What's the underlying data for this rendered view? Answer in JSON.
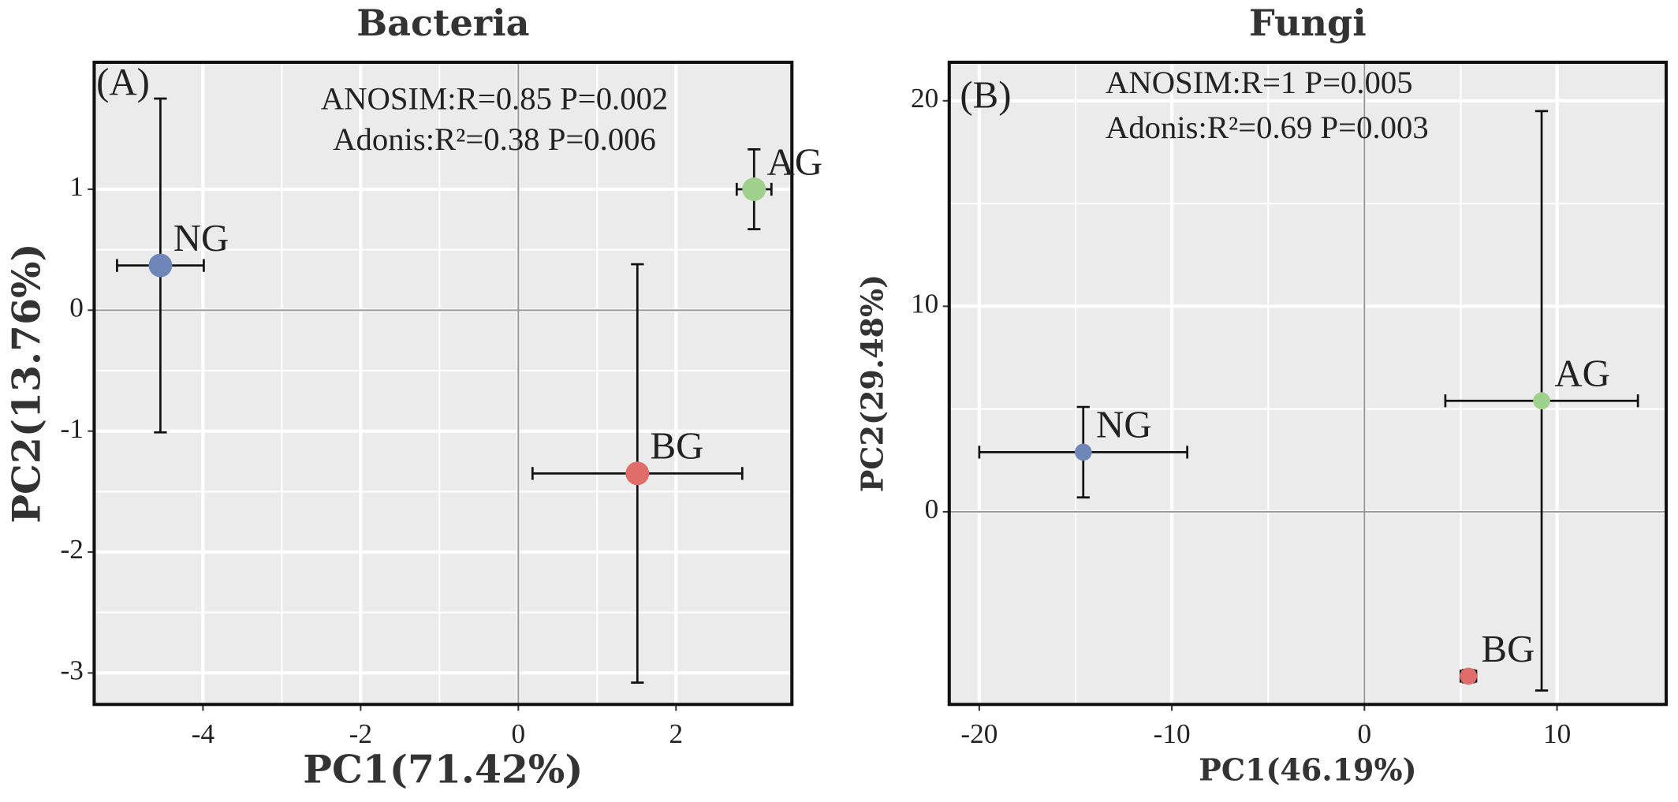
{
  "chart_data": [
    {
      "type": "scatter",
      "title": "Bacteria",
      "xlabel": "PC1(71.42%)",
      "ylabel": "PC2(13.76%)",
      "panel_label": "(A)",
      "annotations": [
        "ANOSIM:R=0.85  P=0.002",
        "Adonis:R²=0.38  P=0.006"
      ],
      "xlim": [
        -5.38,
        3.47
      ],
      "ylim": [
        -3.26,
        2.05
      ],
      "xticks": [
        -4,
        -2,
        0,
        2
      ],
      "yticks": [
        -3,
        -2,
        -1,
        0,
        1
      ],
      "grid": true,
      "series": [
        {
          "name": "NG",
          "color": "#6f86b8",
          "x": [
            -4.54
          ],
          "values": [
            0.37
          ],
          "xerr": [
            0.55
          ],
          "yerr": [
            1.38
          ]
        },
        {
          "name": "AG",
          "color": "#9fd08c",
          "x": [
            2.99
          ],
          "values": [
            1.0
          ],
          "xerr": [
            0.22
          ],
          "yerr": [
            0.33
          ]
        },
        {
          "name": "BG",
          "color": "#e06c6c",
          "x": [
            1.51
          ],
          "values": [
            -1.35
          ],
          "xerr": [
            1.33
          ],
          "yerr": [
            1.73
          ]
        }
      ]
    },
    {
      "type": "scatter",
      "title": "Fungi",
      "xlabel": "PC1(46.19%)",
      "ylabel": "PC2(29.48%)",
      "panel_label": "(B)",
      "annotations": [
        "ANOSIM:R=1  P=0.005",
        "Adonis:R²=0.69 P=0.003"
      ],
      "xlim": [
        -21.56,
        15.67
      ],
      "ylim": [
        -9.375,
        21.875
      ],
      "xticks": [
        -20,
        -10,
        0,
        10
      ],
      "yticks": [
        0,
        10,
        20
      ],
      "grid": true,
      "series": [
        {
          "name": "NG",
          "color": "#6f86b8",
          "x": [
            -14.6
          ],
          "values": [
            2.9
          ],
          "xerr": [
            5.4
          ],
          "yerr": [
            2.2
          ]
        },
        {
          "name": "AG",
          "color": "#9fd08c",
          "x": [
            9.2
          ],
          "values": [
            5.4
          ],
          "xerr": [
            5.0
          ],
          "yerr": [
            14.1
          ]
        },
        {
          "name": "BG",
          "color": "#e06c6c",
          "x": [
            5.4
          ],
          "values": [
            -8.0
          ],
          "xerr": [
            0.4
          ],
          "yerr": [
            0.3
          ]
        }
      ]
    }
  ]
}
